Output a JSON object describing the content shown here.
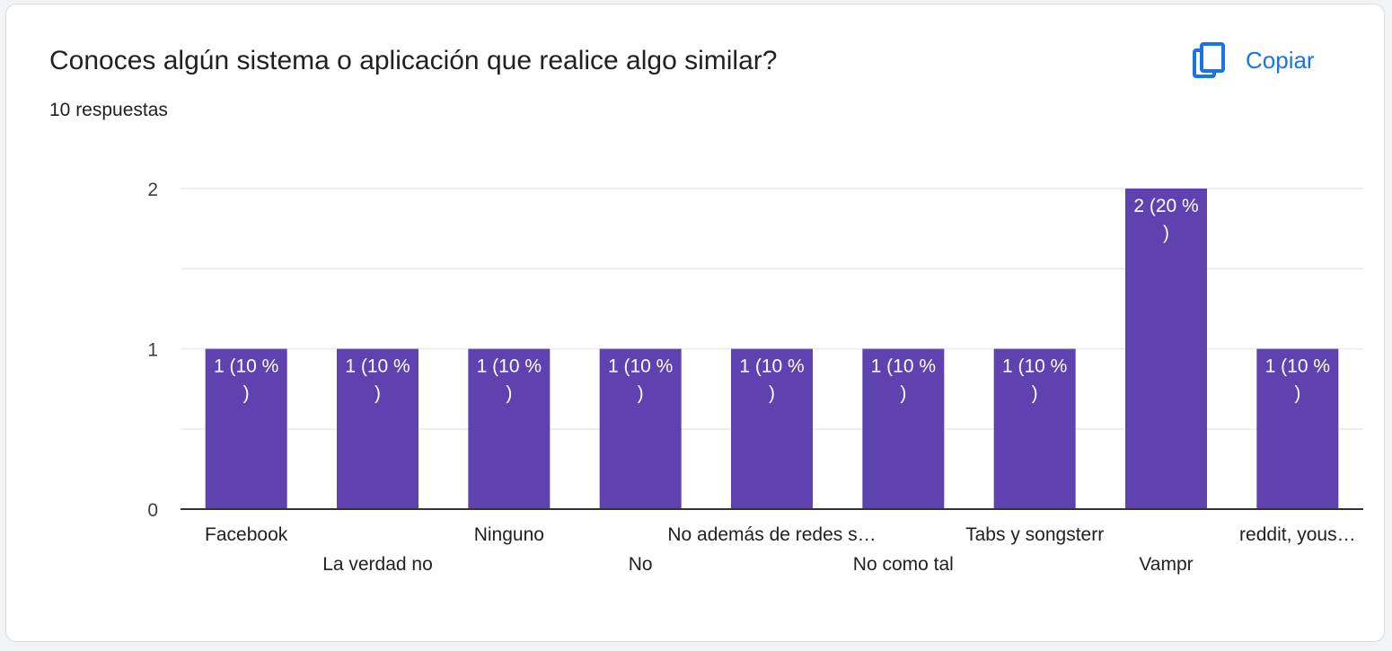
{
  "question": {
    "title": "Conoces algún sistema o aplicación que realice algo similar?",
    "responses": "10 respuestas"
  },
  "copy_button": {
    "label": "Copiar",
    "icon": "copy-icon"
  },
  "colors": {
    "bar": "#5e43b0",
    "accent": "#1a73e8",
    "grid": "#e8eaed",
    "axis": "#3c4043"
  },
  "chart_data": {
    "type": "bar",
    "categories": [
      "Facebook",
      "La verdad no",
      "Ninguno",
      "No",
      "No además de redes s…",
      "No como tal",
      "Tabs y songsterr",
      "Vampr",
      "reddit, yous…"
    ],
    "values": [
      1,
      1,
      1,
      1,
      1,
      1,
      1,
      2,
      1
    ],
    "data_labels": [
      [
        "1 (10 %",
        ")"
      ],
      [
        "1 (10 %",
        ")"
      ],
      [
        "1 (10 %",
        ")"
      ],
      [
        "1 (10 %",
        ")"
      ],
      [
        "1 (10 %",
        ")"
      ],
      [
        "1 (10 %",
        ")"
      ],
      [
        "1 (10 %",
        ")"
      ],
      [
        "2 (20 %",
        ")"
      ],
      [
        "1 (10 %",
        ")"
      ]
    ],
    "y_ticks": [
      0,
      1,
      2
    ],
    "ylim": [
      0,
      2
    ],
    "grid": true,
    "title": "",
    "xlabel": "",
    "ylabel": ""
  }
}
